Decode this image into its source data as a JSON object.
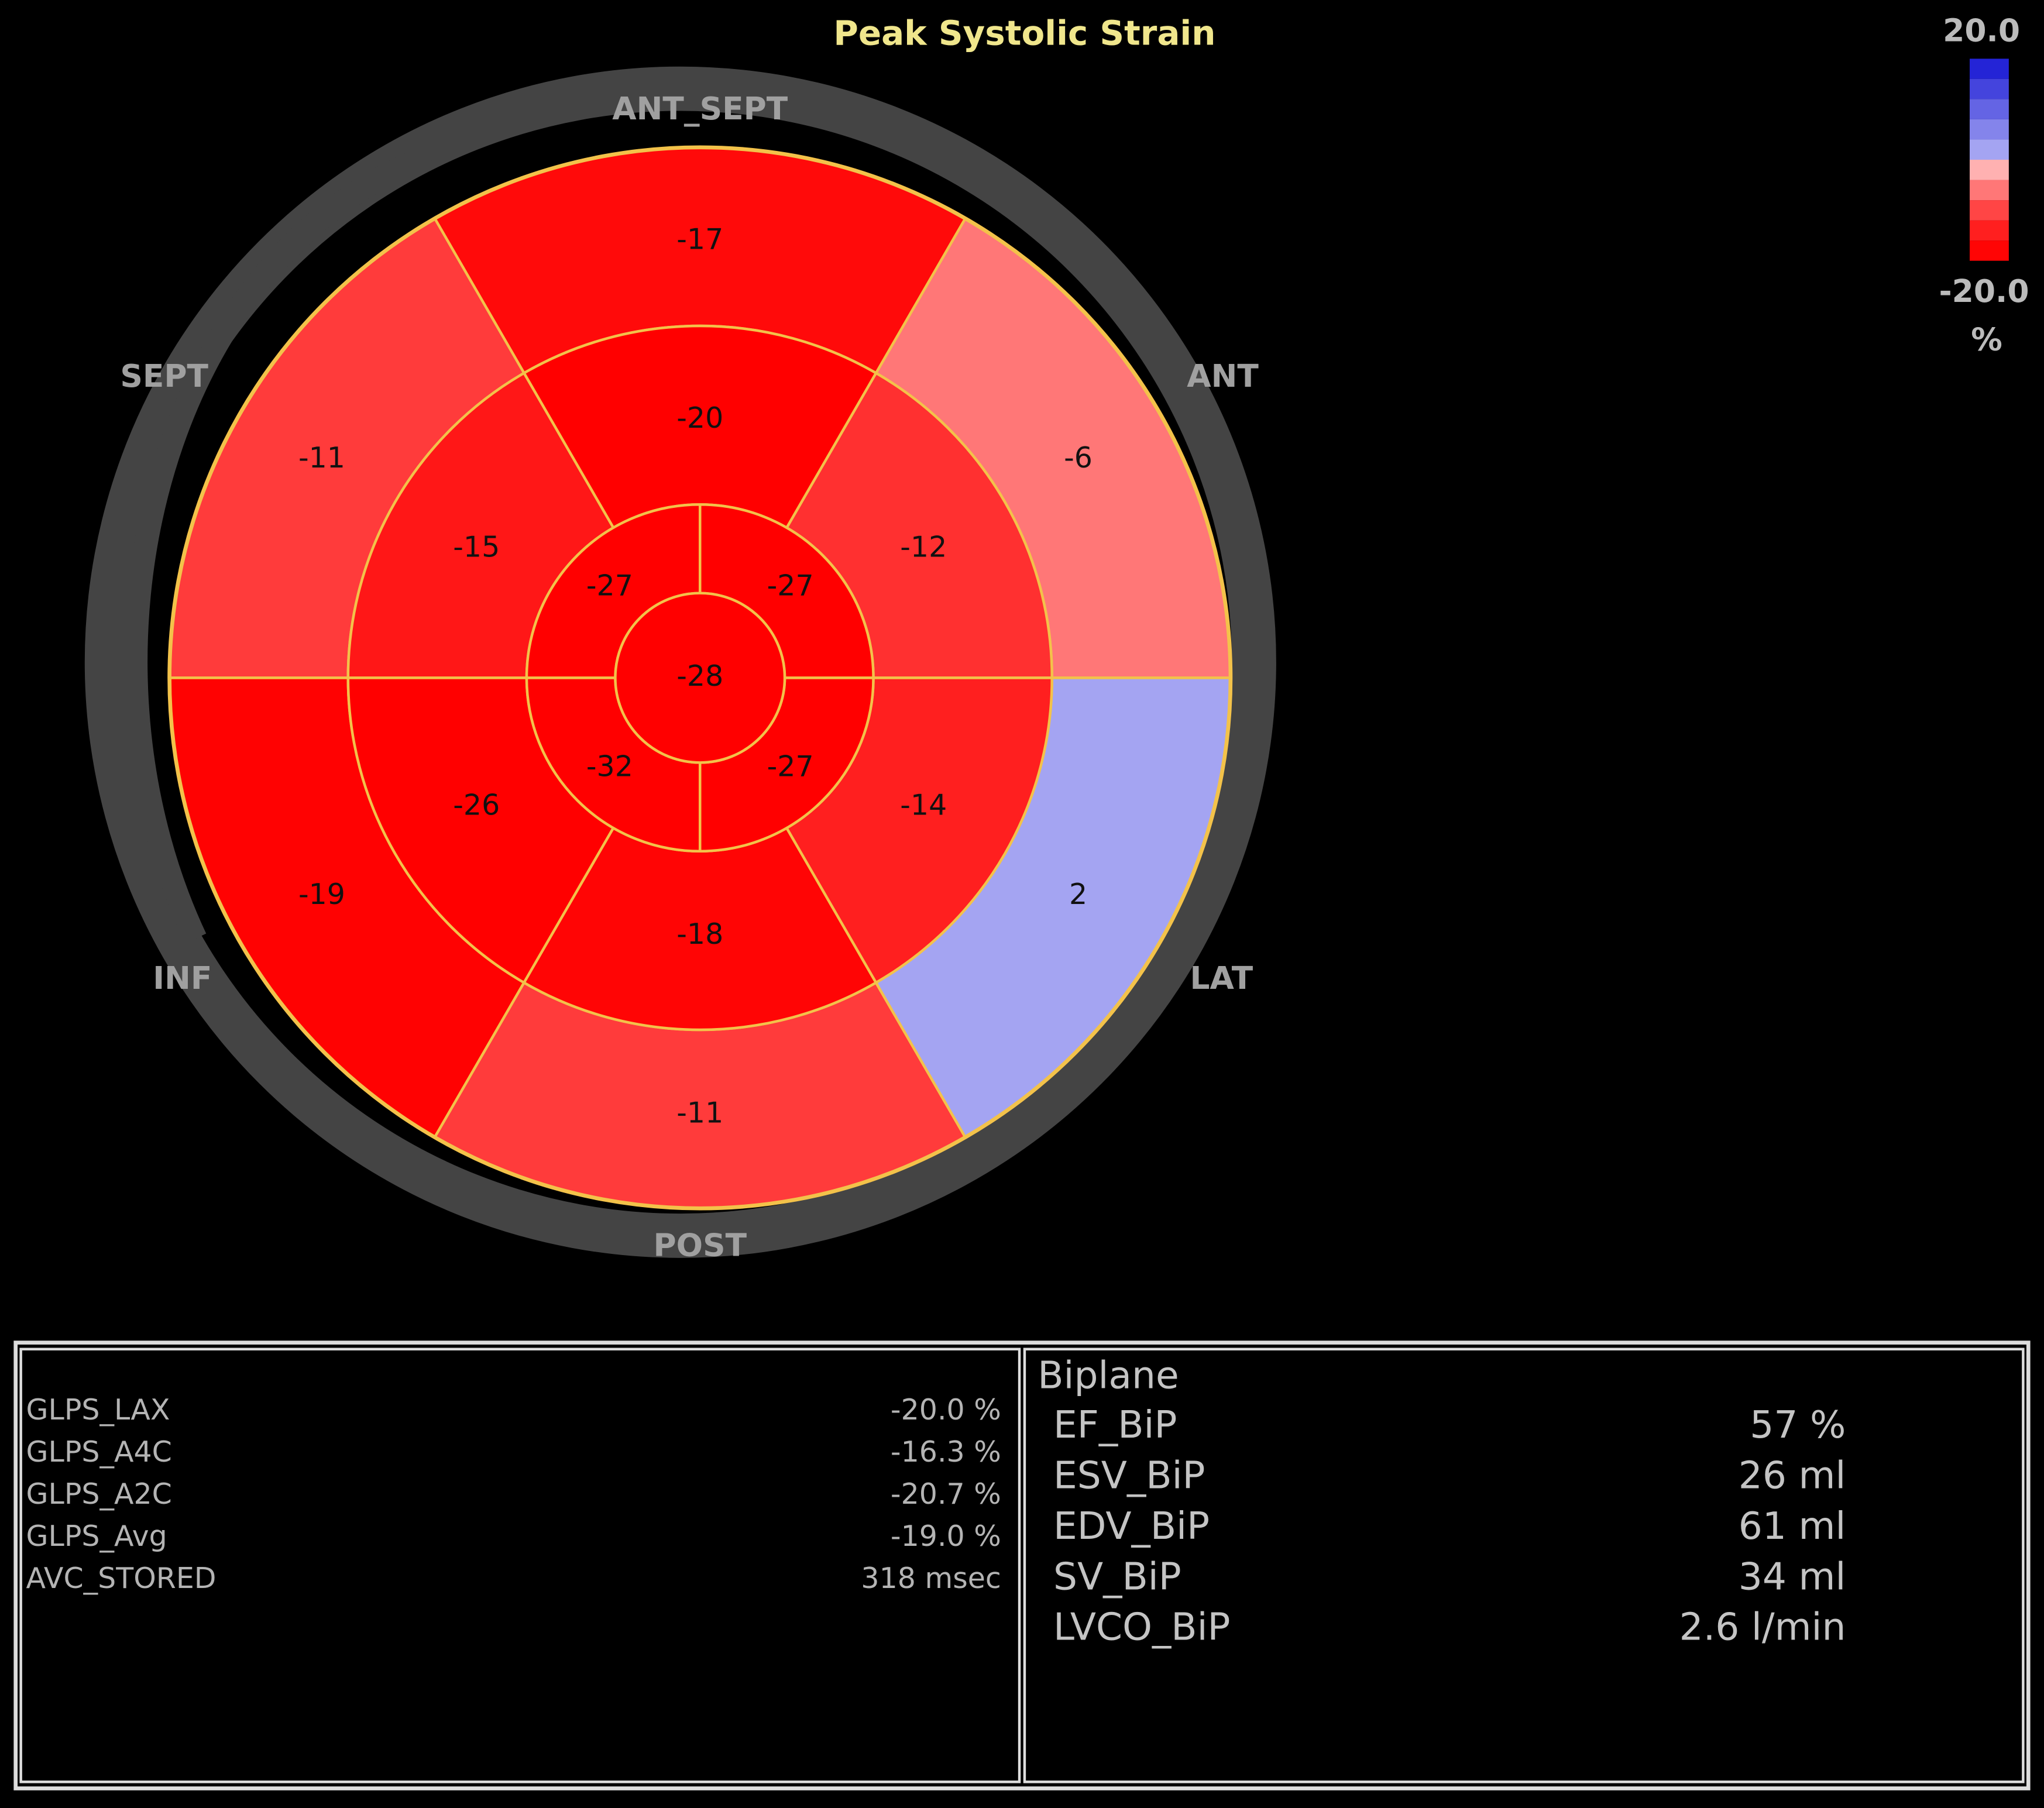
{
  "title": "Peak Systolic Strain",
  "colorbar": {
    "max": "20.0",
    "min": "-20.0",
    "unit": "%"
  },
  "walls": {
    "ant_sept": "ANT_SEPT",
    "sept": "SEPT",
    "ant": "ANT",
    "inf": "INF",
    "lat": "LAT",
    "post": "POST"
  },
  "bullseye": {
    "basal": [
      "-6",
      "-17",
      "-11",
      "-19",
      "-11",
      "2"
    ],
    "mid": [
      "-12",
      "-20",
      "-15",
      "-26",
      "-18",
      "-14"
    ],
    "apical": [
      "-27",
      "-27",
      "-32",
      "-27"
    ],
    "apex": "-28"
  },
  "strain_table": {
    "rows": [
      [
        "GLPS_LAX",
        "-20.0 %"
      ],
      [
        "GLPS_A4C",
        "-16.3 %"
      ],
      [
        "GLPS_A2C",
        "-20.7 %"
      ],
      [
        "GLPS_Avg",
        "-19.0 %"
      ],
      [
        "AVC_STORED",
        "318 msec"
      ]
    ]
  },
  "biplane_table": {
    "heading": "Biplane",
    "rows": [
      [
        "EF_BiP",
        "57 %"
      ],
      [
        "ESV_BiP",
        "26 ml"
      ],
      [
        "EDV_BiP",
        "61 ml"
      ],
      [
        "SV_BiP",
        "34 ml"
      ],
      [
        "LVCO_BiP",
        "2.6 l/min"
      ]
    ]
  }
}
